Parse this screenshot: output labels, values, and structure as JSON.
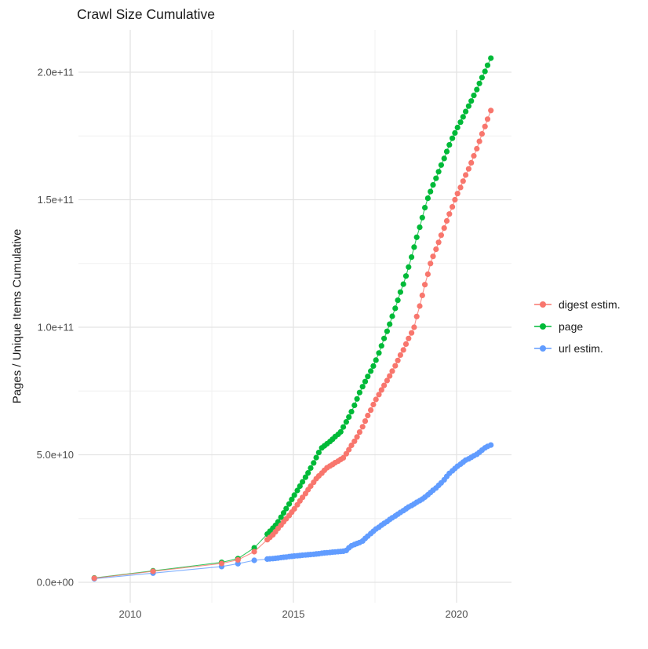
{
  "title": "Crawl Size Cumulative",
  "y_axis": {
    "title": "Pages / Unique Items Cumulative",
    "tick_values_e9": [
      0,
      50,
      100,
      150,
      200
    ],
    "tick_labels": [
      "0.0e+00",
      "5.0e+10",
      "1.0e+11",
      "1.5e+11",
      "2.0e+11"
    ],
    "minor_values_e9": [
      25,
      75,
      125,
      175
    ]
  },
  "x_axis": {
    "tick_values": [
      2010,
      2015,
      2020
    ],
    "tick_labels": [
      "2010",
      "2015",
      "2020"
    ],
    "minor_values": [
      2012.5,
      2017.5
    ]
  },
  "legend": {
    "items": [
      {
        "label": "digest estim.",
        "color": "#F8766D"
      },
      {
        "label": "page",
        "color": "#00BA38"
      },
      {
        "label": "url estim.",
        "color": "#619CFF"
      }
    ]
  },
  "style_colors": {
    "major_grid": "#E3E3E3",
    "minor_grid": "#F0F0F0",
    "tick_text": "#4D4D4D",
    "title_text": "#1A1A1A"
  },
  "chart_data": {
    "type": "scatter",
    "title": "Crawl Size Cumulative",
    "xlabel": "",
    "ylabel": "Pages / Unique Items Cumulative",
    "value_unit": "1e9 (points stored as [year, items/1e9])",
    "xlim": [
      2008.4,
      2021.7
    ],
    "ylim": [
      0,
      216
    ],
    "grid": true,
    "legend_position": "right",
    "draw_order": [
      1,
      2,
      0
    ],
    "series": [
      {
        "name": "digest estim.",
        "color": "#F8766D",
        "points": [
          [
            2008.9,
            1.6
          ],
          [
            2010.7,
            4.3
          ],
          [
            2012.8,
            7.4
          ],
          [
            2013.3,
            8.8
          ],
          [
            2013.8,
            12
          ],
          [
            2014.2,
            16.7
          ],
          [
            2014.28,
            17.6
          ],
          [
            2014.37,
            18.6
          ],
          [
            2014.45,
            19.8
          ],
          [
            2014.53,
            21.1
          ],
          [
            2014.62,
            22.4
          ],
          [
            2014.7,
            23.7
          ],
          [
            2014.78,
            24.9
          ],
          [
            2014.87,
            26.2
          ],
          [
            2014.95,
            27.5
          ],
          [
            2015.03,
            28.8
          ],
          [
            2015.12,
            30.4
          ],
          [
            2015.2,
            31.9
          ],
          [
            2015.28,
            33.3
          ],
          [
            2015.37,
            34.8
          ],
          [
            2015.45,
            36.3
          ],
          [
            2015.53,
            37.7
          ],
          [
            2015.62,
            39.2
          ],
          [
            2015.7,
            40.6
          ],
          [
            2015.78,
            41.7
          ],
          [
            2015.87,
            42.8
          ],
          [
            2015.95,
            43.9
          ],
          [
            2016.03,
            44.9
          ],
          [
            2016.12,
            45.6
          ],
          [
            2016.2,
            46.2
          ],
          [
            2016.28,
            46.9
          ],
          [
            2016.37,
            47.5
          ],
          [
            2016.45,
            48.2
          ],
          [
            2016.53,
            48.8
          ],
          [
            2016.62,
            50.4
          ],
          [
            2016.7,
            52
          ],
          [
            2016.78,
            53.7
          ],
          [
            2016.87,
            55.3
          ],
          [
            2016.95,
            57
          ],
          [
            2017.03,
            58.9
          ],
          [
            2017.12,
            61
          ],
          [
            2017.2,
            63.2
          ],
          [
            2017.28,
            65.4
          ],
          [
            2017.37,
            67.5
          ],
          [
            2017.45,
            69.7
          ],
          [
            2017.53,
            71.7
          ],
          [
            2017.62,
            73.6
          ],
          [
            2017.7,
            75.4
          ],
          [
            2017.78,
            77.2
          ],
          [
            2017.87,
            79.1
          ],
          [
            2017.95,
            80.9
          ],
          [
            2018.03,
            82.8
          ],
          [
            2018.12,
            84.9
          ],
          [
            2018.2,
            87
          ],
          [
            2018.28,
            89.1
          ],
          [
            2018.37,
            91.1
          ],
          [
            2018.45,
            93.4
          ],
          [
            2018.53,
            95.6
          ],
          [
            2018.62,
            97.8
          ],
          [
            2018.7,
            100
          ],
          [
            2018.78,
            104.2
          ],
          [
            2018.87,
            108.3
          ],
          [
            2018.95,
            112.5
          ],
          [
            2019.03,
            116.7
          ],
          [
            2019.12,
            120.8
          ],
          [
            2019.2,
            125
          ],
          [
            2019.28,
            127.8
          ],
          [
            2019.37,
            130.6
          ],
          [
            2019.45,
            133.3
          ],
          [
            2019.53,
            136.1
          ],
          [
            2019.62,
            138.9
          ],
          [
            2019.7,
            141.7
          ],
          [
            2019.78,
            144.4
          ],
          [
            2019.87,
            147.2
          ],
          [
            2019.95,
            150
          ],
          [
            2020.03,
            152.4
          ],
          [
            2020.12,
            154.8
          ],
          [
            2020.2,
            157.3
          ],
          [
            2020.28,
            159.7
          ],
          [
            2020.37,
            162.1
          ],
          [
            2020.45,
            164.5
          ],
          [
            2020.53,
            167.2
          ],
          [
            2020.62,
            170
          ],
          [
            2020.7,
            172.9
          ],
          [
            2020.78,
            175.8
          ],
          [
            2020.87,
            178.7
          ],
          [
            2020.95,
            181.6
          ],
          [
            2021.05,
            185
          ]
        ]
      },
      {
        "name": "page",
        "color": "#00BA38",
        "points": [
          [
            2008.9,
            1.7
          ],
          [
            2010.7,
            4.5
          ],
          [
            2012.8,
            7.8
          ],
          [
            2013.3,
            9.3
          ],
          [
            2013.8,
            13.5
          ],
          [
            2014.2,
            18.9
          ],
          [
            2014.28,
            20
          ],
          [
            2014.37,
            21.2
          ],
          [
            2014.45,
            22.3
          ],
          [
            2014.53,
            23.7
          ],
          [
            2014.62,
            25.5
          ],
          [
            2014.7,
            27.2
          ],
          [
            2014.78,
            28.9
          ],
          [
            2014.87,
            30.7
          ],
          [
            2014.95,
            32.5
          ],
          [
            2015.03,
            34.2
          ],
          [
            2015.12,
            36
          ],
          [
            2015.2,
            37.7
          ],
          [
            2015.28,
            39.4
          ],
          [
            2015.37,
            41.2
          ],
          [
            2015.45,
            42.9
          ],
          [
            2015.53,
            44.8
          ],
          [
            2015.62,
            46.8
          ],
          [
            2015.7,
            48.9
          ],
          [
            2015.78,
            50.9
          ],
          [
            2015.87,
            52.7
          ],
          [
            2015.95,
            53.5
          ],
          [
            2016.03,
            54.3
          ],
          [
            2016.12,
            55.2
          ],
          [
            2016.2,
            56.1
          ],
          [
            2016.28,
            57.1
          ],
          [
            2016.37,
            58
          ],
          [
            2016.45,
            59
          ],
          [
            2016.53,
            60.9
          ],
          [
            2016.62,
            62.9
          ],
          [
            2016.7,
            64.8
          ],
          [
            2016.78,
            66.9
          ],
          [
            2016.87,
            69.4
          ],
          [
            2016.95,
            71.9
          ],
          [
            2017.03,
            74.4
          ],
          [
            2017.12,
            76.7
          ],
          [
            2017.2,
            78.7
          ],
          [
            2017.28,
            80.7
          ],
          [
            2017.37,
            82.8
          ],
          [
            2017.45,
            84.8
          ],
          [
            2017.53,
            87.1
          ],
          [
            2017.62,
            89.9
          ],
          [
            2017.7,
            92.7
          ],
          [
            2017.78,
            95.6
          ],
          [
            2017.87,
            98.4
          ],
          [
            2017.95,
            101.2
          ],
          [
            2018.03,
            104.3
          ],
          [
            2018.12,
            107.4
          ],
          [
            2018.2,
            110.6
          ],
          [
            2018.28,
            113.8
          ],
          [
            2018.37,
            116.9
          ],
          [
            2018.45,
            120.1
          ],
          [
            2018.53,
            123.6
          ],
          [
            2018.62,
            127.5
          ],
          [
            2018.7,
            131.4
          ],
          [
            2018.78,
            135.3
          ],
          [
            2018.87,
            139.2
          ],
          [
            2018.95,
            143
          ],
          [
            2019.03,
            146.9
          ],
          [
            2019.12,
            150.6
          ],
          [
            2019.2,
            153.2
          ],
          [
            2019.28,
            155.8
          ],
          [
            2019.37,
            158.4
          ],
          [
            2019.45,
            161
          ],
          [
            2019.53,
            163.6
          ],
          [
            2019.62,
            166.2
          ],
          [
            2019.7,
            168.9
          ],
          [
            2019.78,
            171.5
          ],
          [
            2019.87,
            174.1
          ],
          [
            2019.95,
            176.2
          ],
          [
            2020.03,
            178.3
          ],
          [
            2020.12,
            180.4
          ],
          [
            2020.2,
            182.5
          ],
          [
            2020.28,
            184.6
          ],
          [
            2020.37,
            186.7
          ],
          [
            2020.45,
            188.7
          ],
          [
            2020.53,
            190.9
          ],
          [
            2020.62,
            193.2
          ],
          [
            2020.7,
            195.6
          ],
          [
            2020.78,
            197.9
          ],
          [
            2020.87,
            200.3
          ],
          [
            2020.95,
            202.7
          ],
          [
            2021.05,
            205.5
          ]
        ]
      },
      {
        "name": "url estim.",
        "color": "#619CFF",
        "points": [
          [
            2008.9,
            1.4
          ],
          [
            2010.7,
            3.6
          ],
          [
            2012.8,
            6.2
          ],
          [
            2013.3,
            7.3
          ],
          [
            2013.8,
            8.6
          ],
          [
            2014.2,
            9.1
          ],
          [
            2014.28,
            9.2
          ],
          [
            2014.37,
            9.3
          ],
          [
            2014.45,
            9.4
          ],
          [
            2014.53,
            9.5
          ],
          [
            2014.62,
            9.7
          ],
          [
            2014.7,
            9.8
          ],
          [
            2014.78,
            9.9
          ],
          [
            2014.87,
            10.1
          ],
          [
            2014.95,
            10.2
          ],
          [
            2015.03,
            10.3
          ],
          [
            2015.12,
            10.4
          ],
          [
            2015.2,
            10.5
          ],
          [
            2015.28,
            10.6
          ],
          [
            2015.37,
            10.7
          ],
          [
            2015.45,
            10.8
          ],
          [
            2015.53,
            10.9
          ],
          [
            2015.62,
            11
          ],
          [
            2015.7,
            11.1
          ],
          [
            2015.78,
            11.2
          ],
          [
            2015.87,
            11.4
          ],
          [
            2015.95,
            11.5
          ],
          [
            2016.03,
            11.6
          ],
          [
            2016.12,
            11.7
          ],
          [
            2016.2,
            11.8
          ],
          [
            2016.28,
            11.9
          ],
          [
            2016.37,
            12
          ],
          [
            2016.45,
            12.1
          ],
          [
            2016.53,
            12.2
          ],
          [
            2016.62,
            12.5
          ],
          [
            2016.7,
            13.5
          ],
          [
            2016.78,
            14.3
          ],
          [
            2016.87,
            14.8
          ],
          [
            2016.95,
            15.2
          ],
          [
            2017.03,
            15.6
          ],
          [
            2017.12,
            16.2
          ],
          [
            2017.2,
            17.2
          ],
          [
            2017.28,
            18.1
          ],
          [
            2017.37,
            19.1
          ],
          [
            2017.45,
            20
          ],
          [
            2017.53,
            20.9
          ],
          [
            2017.62,
            21.6
          ],
          [
            2017.7,
            22.4
          ],
          [
            2017.78,
            23.1
          ],
          [
            2017.87,
            23.8
          ],
          [
            2017.95,
            24.6
          ],
          [
            2018.03,
            25.3
          ],
          [
            2018.12,
            26
          ],
          [
            2018.2,
            26.7
          ],
          [
            2018.28,
            27.4
          ],
          [
            2018.37,
            28.1
          ],
          [
            2018.45,
            28.8
          ],
          [
            2018.53,
            29.5
          ],
          [
            2018.62,
            30.1
          ],
          [
            2018.7,
            30.7
          ],
          [
            2018.78,
            31.4
          ],
          [
            2018.87,
            32
          ],
          [
            2018.95,
            32.6
          ],
          [
            2019.03,
            33.4
          ],
          [
            2019.12,
            34.3
          ],
          [
            2019.2,
            35.2
          ],
          [
            2019.28,
            36.1
          ],
          [
            2019.37,
            37
          ],
          [
            2019.45,
            38
          ],
          [
            2019.53,
            39
          ],
          [
            2019.62,
            40.2
          ],
          [
            2019.7,
            41.5
          ],
          [
            2019.78,
            42.7
          ],
          [
            2019.87,
            43.7
          ],
          [
            2019.95,
            44.6
          ],
          [
            2020.03,
            45.5
          ],
          [
            2020.12,
            46.3
          ],
          [
            2020.2,
            47.1
          ],
          [
            2020.28,
            47.9
          ],
          [
            2020.37,
            48.4
          ],
          [
            2020.45,
            49
          ],
          [
            2020.53,
            49.6
          ],
          [
            2020.62,
            50.2
          ],
          [
            2020.7,
            51
          ],
          [
            2020.78,
            51.8
          ],
          [
            2020.87,
            52.7
          ],
          [
            2020.95,
            53.3
          ],
          [
            2021.05,
            53.8
          ]
        ]
      }
    ]
  }
}
